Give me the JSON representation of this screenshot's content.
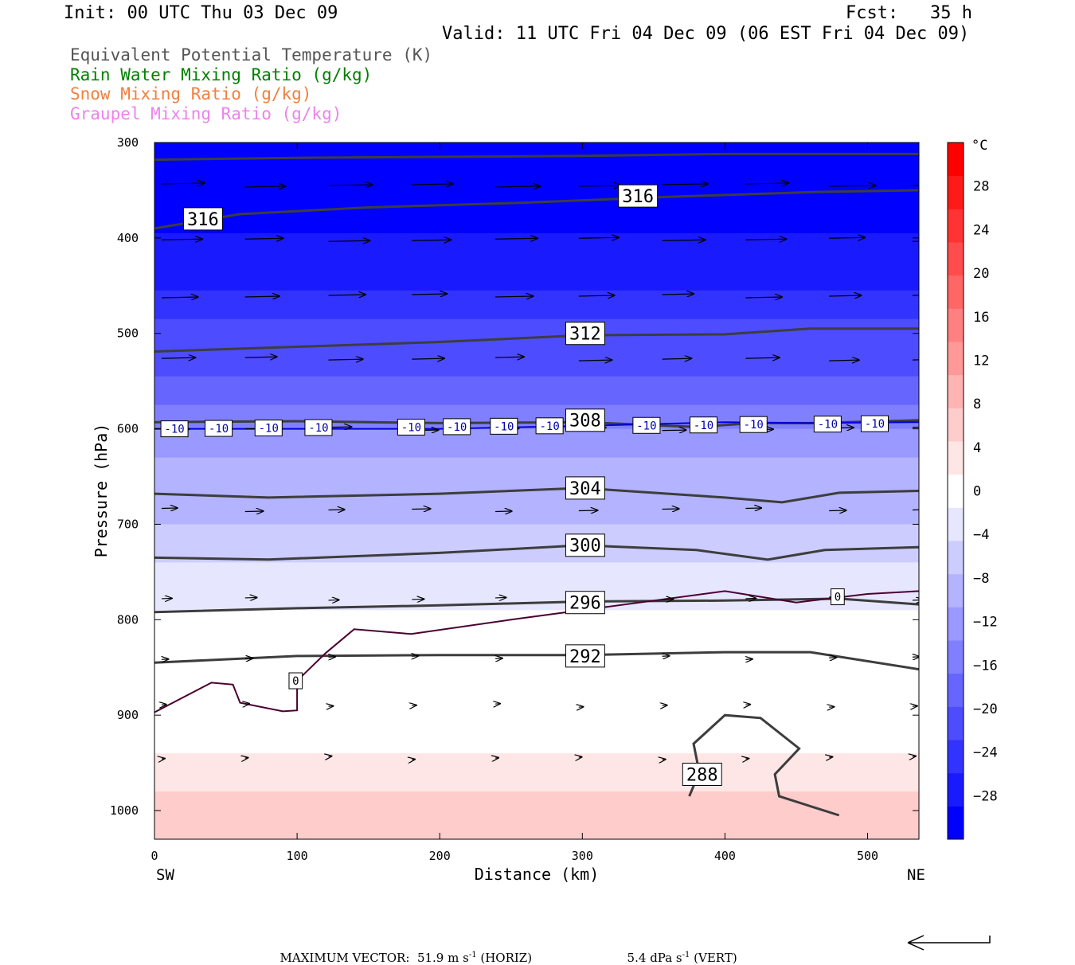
{
  "header": {
    "init": "Init: 00 UTC Thu 03 Dec 09",
    "fcst": "Fcst:   35 h",
    "valid": "Valid: 11 UTC Fri 04 Dec 09 (06 EST Fri 04 Dec 09)"
  },
  "legend": [
    {
      "text": "Equivalent Potential Temperature (K)",
      "color": "#555555"
    },
    {
      "text": "Rain Water Mixing Ratio (g/kg)",
      "color": "#008000"
    },
    {
      "text": "Snow Mixing Ratio (g/kg)",
      "color": "#f08040"
    },
    {
      "text": "Graupel Mixing Ratio (g/kg)",
      "color": "#ee82ee"
    }
  ],
  "footer": {
    "label": "MAXIMUM VECTOR:",
    "horiz_value": "51.9",
    "horiz_unit": "m s",
    "horiz_exp": "-1",
    "horiz_tag": "(HORIZ)",
    "vert_value": "5.4",
    "vert_unit": "dPa s",
    "vert_exp": "-1",
    "vert_tag": "(VERT)"
  },
  "chart_data": {
    "type": "contour-cross-section",
    "xlabel": "Distance (km)",
    "ylabel": "Pressure (hPa)",
    "xlim": [
      0,
      536
    ],
    "ylim": [
      1030,
      300
    ],
    "x_ticks": [
      0,
      100,
      200,
      300,
      400,
      500
    ],
    "y_ticks": [
      300,
      400,
      500,
      600,
      700,
      800,
      900,
      1000
    ],
    "x_end_labels": {
      "left": "SW",
      "right": "NE"
    },
    "colorbar": {
      "unit": "°C",
      "min": -32,
      "max": 32,
      "tick_labels": [
        28,
        24,
        20,
        16,
        12,
        8,
        4,
        0,
        -4,
        -8,
        -12,
        -16,
        -20,
        -24,
        -28
      ],
      "colors": [
        "#0000ff",
        "#1a1aff",
        "#3333ff",
        "#4d4dff",
        "#6666ff",
        "#8080ff",
        "#9999ff",
        "#b3b3ff",
        "#ccccff",
        "#e6e6ff",
        "#ffffff",
        "#ffe6e6",
        "#ffcccc",
        "#ffb3b3",
        "#ff9999",
        "#ff8080",
        "#ff6666",
        "#ff4d4d",
        "#ff3333",
        "#ff1a1a",
        "#ff0000"
      ]
    },
    "temperature_bands": [
      {
        "p_top": 300,
        "p_bot": 320,
        "temp": -32
      },
      {
        "p_top": 320,
        "p_bot": 395,
        "temp": -30
      },
      {
        "p_top": 395,
        "p_bot": 425,
        "temp": -28
      },
      {
        "p_top": 425,
        "p_bot": 455,
        "temp": -26
      },
      {
        "p_top": 455,
        "p_bot": 485,
        "temp": -24
      },
      {
        "p_top": 485,
        "p_bot": 515,
        "temp": -22
      },
      {
        "p_top": 515,
        "p_bot": 545,
        "temp": -20
      },
      {
        "p_top": 545,
        "p_bot": 575,
        "temp": -18
      },
      {
        "p_top": 575,
        "p_bot": 600,
        "temp": -14
      },
      {
        "p_top": 600,
        "p_bot": 630,
        "temp": -12
      },
      {
        "p_top": 630,
        "p_bot": 665,
        "temp": -10
      },
      {
        "p_top": 665,
        "p_bot": 700,
        "temp": -8
      },
      {
        "p_top": 700,
        "p_bot": 740,
        "temp": -6
      },
      {
        "p_top": 740,
        "p_bot": 790,
        "temp": -3
      },
      {
        "p_top": 790,
        "p_bot": 860,
        "temp": -1
      },
      {
        "p_top": 860,
        "p_bot": 940,
        "temp": 1
      },
      {
        "p_top": 940,
        "p_bot": 980,
        "temp": 3
      },
      {
        "p_top": 980,
        "p_bot": 1030,
        "temp": 5
      }
    ],
    "theta_e_contours": [
      {
        "label": "316",
        "points": [
          [
            0,
            318
          ],
          [
            100,
            316
          ],
          [
            200,
            315
          ],
          [
            300,
            314
          ],
          [
            400,
            312
          ],
          [
            536,
            312
          ]
        ]
      },
      {
        "label": "316",
        "points": [
          [
            0,
            390
          ],
          [
            60,
            375
          ],
          [
            150,
            368
          ],
          [
            260,
            363
          ],
          [
            360,
            357
          ],
          [
            460,
            352
          ],
          [
            536,
            350
          ]
        ]
      },
      {
        "label": "312",
        "points": [
          [
            0,
            519
          ],
          [
            100,
            514
          ],
          [
            200,
            509
          ],
          [
            300,
            502
          ],
          [
            400,
            501
          ],
          [
            460,
            495
          ],
          [
            536,
            495
          ]
        ]
      },
      {
        "label": "308",
        "points": [
          [
            0,
            593
          ],
          [
            100,
            592
          ],
          [
            200,
            594
          ],
          [
            300,
            593
          ],
          [
            380,
            598
          ],
          [
            420,
            594
          ],
          [
            460,
            594
          ],
          [
            536,
            591
          ]
        ]
      },
      {
        "label": "304",
        "points": [
          [
            0,
            668
          ],
          [
            80,
            672
          ],
          [
            200,
            668
          ],
          [
            300,
            662
          ],
          [
            400,
            672
          ],
          [
            440,
            677
          ],
          [
            480,
            667
          ],
          [
            536,
            665
          ]
        ]
      },
      {
        "label": "300",
        "points": [
          [
            0,
            735
          ],
          [
            80,
            737
          ],
          [
            200,
            730
          ],
          [
            300,
            722
          ],
          [
            380,
            727
          ],
          [
            430,
            737
          ],
          [
            470,
            727
          ],
          [
            536,
            724
          ]
        ]
      },
      {
        "label": "296",
        "points": [
          [
            0,
            792
          ],
          [
            100,
            788
          ],
          [
            200,
            785
          ],
          [
            300,
            781
          ],
          [
            400,
            780
          ],
          [
            480,
            778
          ],
          [
            536,
            784
          ]
        ]
      },
      {
        "label": "292",
        "points": [
          [
            0,
            845
          ],
          [
            100,
            838
          ],
          [
            200,
            837
          ],
          [
            300,
            837
          ],
          [
            400,
            834
          ],
          [
            460,
            834
          ],
          [
            536,
            852
          ]
        ]
      },
      {
        "label": "288",
        "points": [
          [
            375,
            985
          ],
          [
            382,
            960
          ],
          [
            378,
            930
          ],
          [
            400,
            900
          ],
          [
            425,
            903
          ],
          [
            452,
            935
          ],
          [
            435,
            962
          ],
          [
            438,
            985
          ],
          [
            480,
            1005
          ]
        ]
      }
    ],
    "temp_contours": [
      {
        "label": "-10",
        "points": [
          [
            0,
            600
          ],
          [
            100,
            600
          ],
          [
            200,
            600
          ],
          [
            300,
            597
          ],
          [
            400,
            593
          ],
          [
            460,
            594
          ],
          [
            536,
            593
          ]
        ]
      },
      {
        "label": "0",
        "points": [
          [
            0,
            897
          ],
          [
            40,
            866
          ],
          [
            55,
            868
          ],
          [
            60,
            887
          ],
          [
            90,
            896
          ],
          [
            100,
            895
          ],
          [
            100,
            864
          ],
          [
            120,
            835
          ],
          [
            140,
            810
          ],
          [
            180,
            815
          ],
          [
            250,
            800
          ],
          [
            300,
            790
          ],
          [
            400,
            770
          ],
          [
            450,
            782
          ],
          [
            500,
            773
          ],
          [
            536,
            770
          ]
        ]
      }
    ],
    "wind_barb_rows_hpa": [
      345,
      402,
      461,
      527,
      600,
      685,
      778,
      840,
      890,
      945
    ]
  }
}
